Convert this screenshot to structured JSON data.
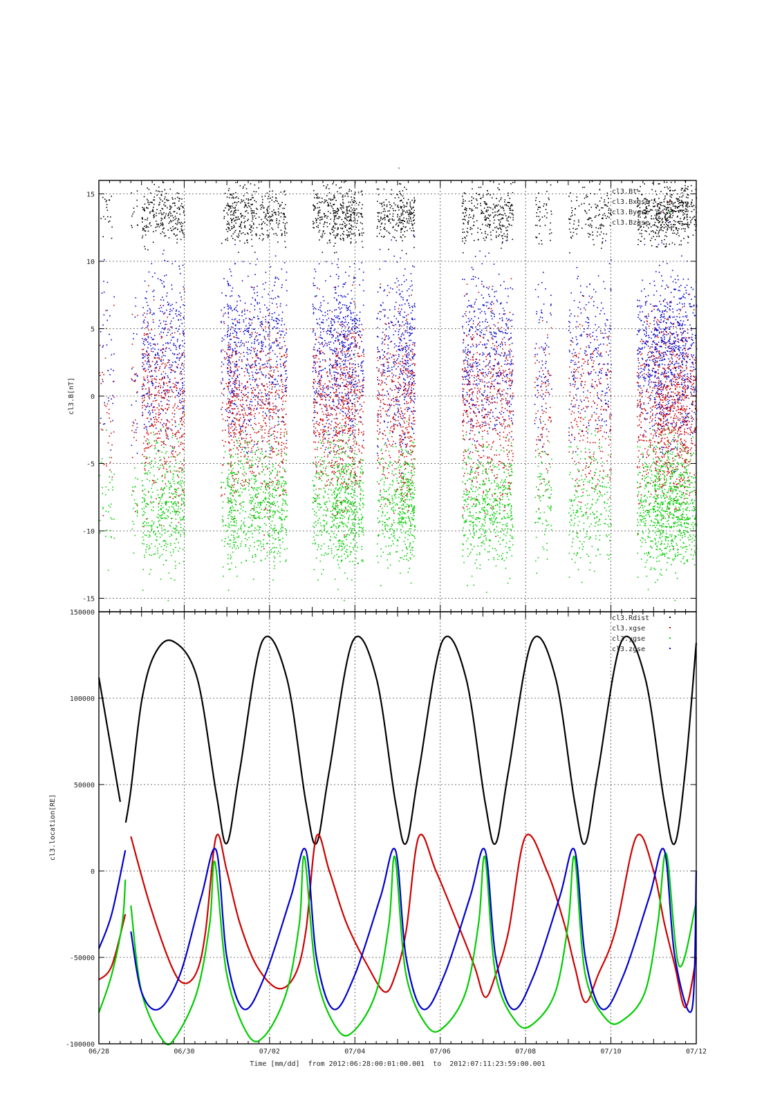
{
  "page": {
    "top_title": "-"
  },
  "colors": {
    "black": "#000000",
    "red": "#cc0000",
    "green": "#00cc00",
    "blue": "#0000cc"
  },
  "x_axis": {
    "tick_labels": [
      "06/28",
      "06/30",
      "07/02",
      "07/04",
      "07/06",
      "07/08",
      "07/10",
      "07/12"
    ],
    "title": "Time [mm/dd]  from 2012:06:28:00:01:00.001  to  2012:07:11:23:59:00.001"
  },
  "chart_data": [
    {
      "type": "scatter",
      "ylabel": "cl3.B[nT]",
      "xlim": [
        "2012-06-28",
        "2012-07-12"
      ],
      "ylim": [
        -16,
        16
      ],
      "yticks": [
        -15,
        -10,
        -5,
        0,
        5,
        10,
        15
      ],
      "ytick_labels": [
        "-15",
        "-10",
        "-5",
        "0",
        "5",
        "10",
        "15"
      ],
      "grid": true,
      "legend_position": "top-right",
      "series": [
        {
          "name": "cl3.Bt",
          "color": "#000000"
        },
        {
          "name": "cl3.Bxgse",
          "color": "#cc0000"
        },
        {
          "name": "cl3.Bygse",
          "color": "#00cc00"
        },
        {
          "name": "cl3.Bzgse",
          "color": "#0000cc"
        }
      ]
    },
    {
      "type": "line",
      "ylabel": "cl3.location[RE]",
      "xlim": [
        "2012-06-28",
        "2012-07-12"
      ],
      "ylim": [
        -100000,
        150000
      ],
      "yticks": [
        -100000,
        -50000,
        0,
        50000,
        100000,
        150000
      ],
      "ytick_labels": [
        "-100000",
        "-50000",
        "0",
        "50000",
        "100000",
        "150000"
      ],
      "grid": true,
      "legend_position": "top-right",
      "series": [
        {
          "name": "cl3.Rdist",
          "color": "#000000",
          "x": [
            0.0,
            0.5,
            0.63,
            0.75,
            1.0,
            1.3,
            1.73,
            2.3,
            2.75,
            3.0,
            3.3,
            3.83,
            4.4,
            4.85,
            5.1,
            5.4,
            5.95,
            6.5,
            6.95,
            7.2,
            7.5,
            8.05,
            8.6,
            9.05,
            9.3,
            9.6,
            10.15,
            10.7,
            11.15,
            11.4,
            11.7,
            12.25,
            12.8,
            13.25,
            13.5,
            13.75,
            14.0
          ],
          "y": [
            112000,
            40000,
            28000,
            47000,
            98000,
            125000,
            133000,
            112000,
            45000,
            16000,
            58000,
            133000,
            112000,
            40000,
            16000,
            58000,
            133000,
            112000,
            40000,
            16000,
            58000,
            133000,
            112000,
            40000,
            16000,
            58000,
            133000,
            112000,
            40000,
            16000,
            58000,
            133000,
            112000,
            40000,
            16000,
            60000,
            132000
          ]
        },
        {
          "name": "cl3.xgse",
          "color": "#cc0000",
          "x": [
            0.0,
            0.3,
            0.62,
            0.75,
            1.2,
            1.7,
            2.0,
            2.3,
            2.5,
            2.75,
            3.0,
            3.3,
            3.7,
            4.2,
            4.6,
            4.85,
            5.1,
            5.4,
            5.8,
            6.3,
            6.7,
            6.95,
            7.2,
            7.5,
            7.9,
            8.4,
            8.8,
            9.05,
            9.3,
            9.6,
            10.0,
            10.5,
            10.9,
            11.15,
            11.4,
            11.7,
            12.1,
            12.6,
            13.0,
            13.25,
            13.5,
            13.75,
            14.0
          ],
          "y": [
            -63000,
            -55000,
            -25000,
            20000,
            -20000,
            -55000,
            -65000,
            -58000,
            -35000,
            20000,
            0,
            -30000,
            -55000,
            -68000,
            -60000,
            -35000,
            20000,
            0,
            -30000,
            -55000,
            -70000,
            -60000,
            -35000,
            20000,
            0,
            -30000,
            -55000,
            -73000,
            -60000,
            -35000,
            20000,
            0,
            -30000,
            -55000,
            -76000,
            -60000,
            -35000,
            20000,
            0,
            -30000,
            -55000,
            -79000,
            -50000
          ]
        },
        {
          "name": "cl3.ygse",
          "color": "#00cc00",
          "x": [
            0.0,
            0.3,
            0.55,
            0.62,
            0.75,
            1.0,
            1.5,
            1.8,
            2.3,
            2.6,
            2.72,
            3.0,
            3.5,
            3.9,
            4.4,
            4.7,
            4.82,
            5.1,
            5.6,
            6.0,
            6.5,
            6.8,
            6.94,
            7.2,
            7.7,
            8.1,
            8.6,
            8.9,
            9.05,
            9.3,
            9.8,
            10.2,
            10.7,
            11.0,
            11.15,
            11.4,
            11.9,
            12.3,
            12.8,
            13.1,
            13.3,
            13.6,
            14.0
          ],
          "y": [
            -82000,
            -60000,
            -30000,
            -5000,
            -20000,
            -70000,
            -98000,
            -96000,
            -70000,
            -30000,
            5000,
            -60000,
            -95000,
            -95000,
            -70000,
            -30000,
            8000,
            -60000,
            -92000,
            -92000,
            -70000,
            -30000,
            8000,
            -60000,
            -90000,
            -90000,
            -70000,
            -30000,
            8000,
            -60000,
            -88000,
            -88000,
            -70000,
            -30000,
            8000,
            -60000,
            -86000,
            -86000,
            -70000,
            -30000,
            10000,
            -55000,
            -18000
          ]
        },
        {
          "name": "cl3.zgse",
          "color": "#0000cc",
          "x": [
            0.0,
            0.3,
            0.62,
            0.75,
            1.0,
            1.4,
            1.9,
            2.4,
            2.75,
            3.0,
            3.4,
            3.9,
            4.5,
            4.85,
            5.1,
            5.5,
            6.0,
            6.6,
            6.95,
            7.2,
            7.6,
            8.1,
            8.7,
            9.05,
            9.3,
            9.7,
            10.2,
            10.8,
            11.15,
            11.4,
            11.8,
            12.3,
            12.9,
            13.25,
            13.5,
            13.9,
            14.0
          ],
          "y": [
            -45000,
            -25000,
            12000,
            -35000,
            -70000,
            -80000,
            -60000,
            -15000,
            12000,
            -50000,
            -80000,
            -60000,
            -15000,
            12000,
            -50000,
            -80000,
            -60000,
            -15000,
            12000,
            -50000,
            -80000,
            -60000,
            -15000,
            12000,
            -50000,
            -80000,
            -60000,
            -15000,
            12000,
            -50000,
            -80000,
            -60000,
            -15000,
            12000,
            -50000,
            -80000,
            0
          ]
        }
      ]
    }
  ]
}
